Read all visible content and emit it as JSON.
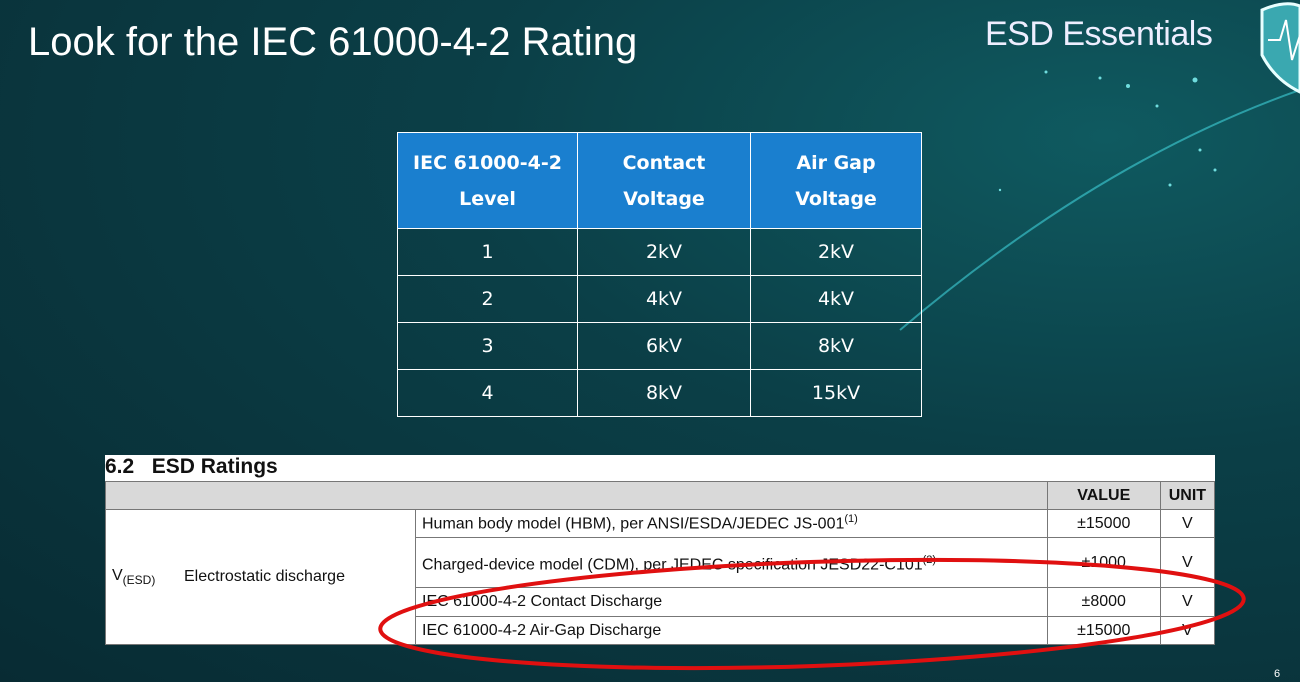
{
  "slide": {
    "title": "Look for the IEC 61000-4-2 Rating",
    "brand": "ESD Essentials",
    "page_number": "6",
    "logo": "shield-heartbeat-icon"
  },
  "iec_table": {
    "headers": [
      [
        "IEC 61000-4-2",
        "Level"
      ],
      [
        "Contact",
        "Voltage"
      ],
      [
        "Air Gap",
        "Voltage"
      ]
    ],
    "rows": [
      [
        "1",
        "2kV",
        "2kV"
      ],
      [
        "2",
        "4kV",
        "4kV"
      ],
      [
        "3",
        "6kV",
        "8kV"
      ],
      [
        "4",
        "8kV",
        "15kV"
      ]
    ],
    "header_color": "#1a7fcf"
  },
  "esd_ratings": {
    "section": "6.2",
    "title": "ESD Ratings",
    "col_value": "VALUE",
    "col_unit": "UNIT",
    "symbol": "V",
    "symbol_sub": "(ESD)",
    "parameter": "Electrostatic discharge",
    "rows": [
      {
        "condition": "Human body model (HBM), per ANSI/ESDA/JEDEC JS-001",
        "note": "(1)",
        "value": "±15000",
        "unit": "V"
      },
      {
        "condition": "Charged-device model (CDM), per JEDEC specification JESD22-C101",
        "note": "(2)",
        "value": "±1000",
        "unit": "V"
      },
      {
        "condition": "IEC 61000-4-2 Contact Discharge",
        "note": "",
        "value": "±8000",
        "unit": "V"
      },
      {
        "condition": "IEC 61000-4-2 Air-Gap Discharge",
        "note": "",
        "value": "±15000",
        "unit": "V"
      }
    ],
    "highlight_color": "#e01010"
  }
}
